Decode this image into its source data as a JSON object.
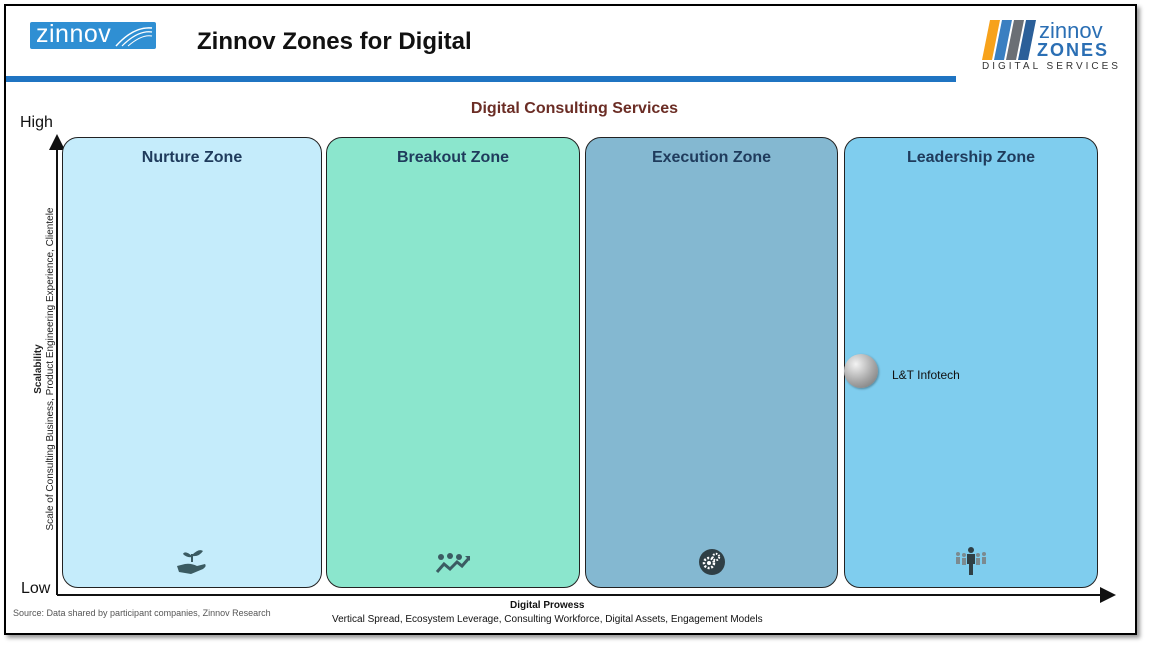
{
  "header": {
    "logo_left_text": "zinnov",
    "title": "Zinnov Zones for Digital",
    "logo_right_line1": "zinnov",
    "logo_right_line2": "ZONES",
    "logo_right_line3": "DIGITAL SERVICES"
  },
  "diagram": {
    "subtitle": "Digital Consulting Services",
    "y_axis": {
      "high": "High",
      "low": "Low",
      "title": "Scalability",
      "subtitle": "Scale of Consulting Business, Product Engineering Experience, Clientele"
    },
    "x_axis": {
      "title": "Digital Prowess",
      "subtitle": "Vertical Spread, Ecosystem Leverage, Consulting Workforce, Digital Assets, Engagement Models"
    },
    "zones": [
      {
        "name": "Nurture Zone",
        "icon": "plant-in-hand-icon",
        "color": "#c5ecfb"
      },
      {
        "name": "Breakout Zone",
        "icon": "people-growth-arrow-icon",
        "color": "#8be6cd"
      },
      {
        "name": "Execution Zone",
        "icon": "gears-icon",
        "color": "#84b8d1"
      },
      {
        "name": "Leadership Zone",
        "icon": "leader-with-team-icon",
        "color": "#7fcdee"
      }
    ],
    "companies": [
      {
        "name": "L&T Infotech",
        "zone": "Leadership Zone"
      }
    ],
    "source": "Source: Data shared by participant companies, Zinnov Research"
  },
  "colors": {
    "accent_bar": "#1f74c2",
    "subtitle": "#6b2d25",
    "zone_title": "#1f3b5c"
  }
}
